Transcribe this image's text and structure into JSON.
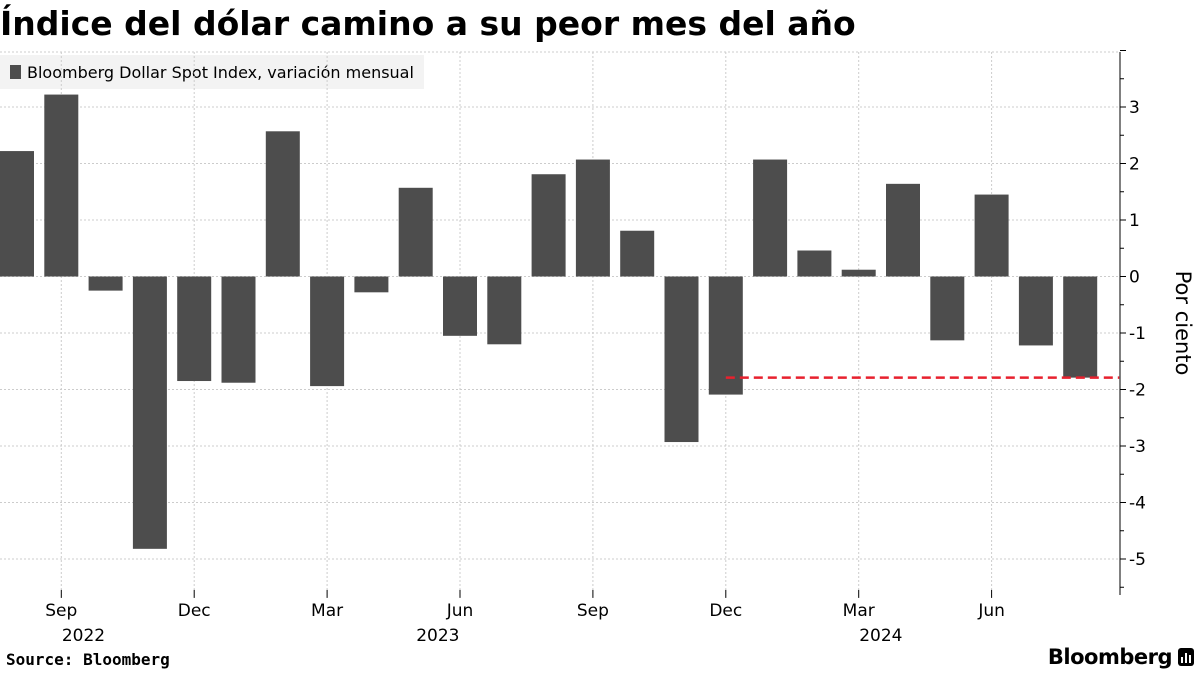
{
  "title": "Índice del dólar camino a su peor mes del año",
  "legend_label": "Bloomberg Dollar Spot Index, variación mensual",
  "source": "Source: Bloomberg",
  "brand": "Bloomberg",
  "colors": {
    "bar": "#4d4d4d",
    "reference_line": "#e8212e",
    "grid": "#cccccc",
    "legend_bg": "#f3f3f3"
  },
  "chart_data": {
    "type": "bar",
    "title": "Índice del dólar camino a su peor mes del año",
    "ylabel": "Por ciento",
    "xlabel": "",
    "ylim": [
      -5.6,
      4.0
    ],
    "yticks": [
      3,
      2,
      1,
      0,
      -1,
      -2,
      -3,
      -4,
      -5
    ],
    "y_axis_position": "right",
    "categories": [
      "2022-08",
      "2022-09",
      "2022-10",
      "2022-11",
      "2022-12",
      "2023-01",
      "2023-02",
      "2023-03",
      "2023-04",
      "2023-05",
      "2023-06",
      "2023-07",
      "2023-08",
      "2023-09",
      "2023-10",
      "2023-11",
      "2023-12",
      "2024-01",
      "2024-02",
      "2024-03",
      "2024-04",
      "2024-05",
      "2024-06",
      "2024-07",
      "2024-08"
    ],
    "series": [
      {
        "name": "Bloomberg Dollar Spot Index, variación mensual",
        "values": [
          2.22,
          3.22,
          -0.25,
          -4.82,
          -1.85,
          -1.88,
          2.57,
          -1.94,
          -0.28,
          1.57,
          -1.05,
          -1.2,
          1.81,
          2.07,
          0.81,
          -2.93,
          -2.09,
          2.07,
          0.46,
          0.12,
          1.64,
          -1.13,
          1.45,
          -1.22,
          -1.79
        ]
      }
    ],
    "x_tick_labels": [
      {
        "label": "Sep",
        "category": "2022-09"
      },
      {
        "label": "Dec",
        "category": "2022-12"
      },
      {
        "label": "Mar",
        "category": "2023-03"
      },
      {
        "label": "Jun",
        "category": "2023-06"
      },
      {
        "label": "Sep",
        "category": "2023-09"
      },
      {
        "label": "Dec",
        "category": "2023-12"
      },
      {
        "label": "Mar",
        "category": "2024-03"
      },
      {
        "label": "Jun",
        "category": "2024-06"
      }
    ],
    "x_year_labels": [
      {
        "label": "2022",
        "category": "2022-10"
      },
      {
        "label": "2023",
        "category": "2023-06"
      },
      {
        "label": "2024",
        "category": "2024-04"
      }
    ],
    "reference_line": {
      "value": -1.79,
      "from_category": "2023-12",
      "to_category": "2024-08",
      "style": "dashed"
    }
  }
}
